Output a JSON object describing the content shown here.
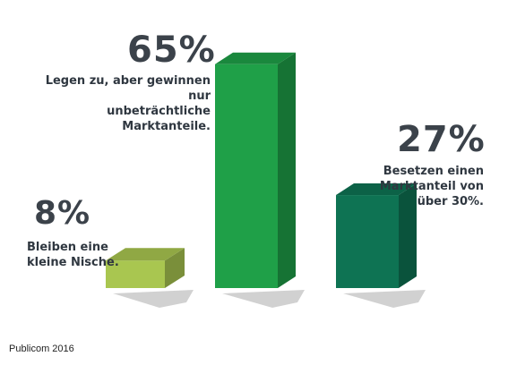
{
  "chart_data": {
    "type": "bar",
    "title": "",
    "xlabel": "",
    "ylabel": "",
    "ylim": [
      0,
      70
    ],
    "grid": false,
    "legend": "none",
    "categories": [
      "Bleiben eine kleine Nische.",
      "Legen zu, aber gewinnen nur unbeträchtliche Marktanteile.",
      "Besetzen einen Marktanteil von über 30%."
    ],
    "values": [
      8,
      65,
      27
    ],
    "value_labels": [
      "8%",
      "65%",
      "27%"
    ],
    "colors": [
      "#a9c650",
      "#1fa048",
      "#0e7353"
    ]
  },
  "labels": {
    "bar1_pct": "8%",
    "bar1_line1": "Bleiben eine",
    "bar1_line2": "kleine Nische.",
    "bar2_pct": "65%",
    "bar2_line1": "Legen zu, aber gewinnen nur",
    "bar2_line2": "unbeträchtliche Marktanteile.",
    "bar3_pct": "27%",
    "bar3_line1": "Besetzen einen",
    "bar3_line2": "Marktanteil von",
    "bar3_line3": "über 30%."
  },
  "source": "Publicom 2016"
}
